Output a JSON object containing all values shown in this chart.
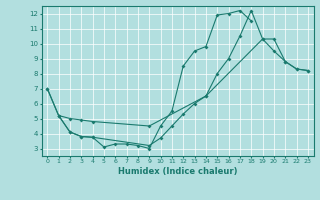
{
  "xlabel": "Humidex (Indice chaleur)",
  "xlim": [
    -0.5,
    23.5
  ],
  "ylim": [
    2.5,
    12.5
  ],
  "xticks": [
    0,
    1,
    2,
    3,
    4,
    5,
    6,
    7,
    8,
    9,
    10,
    11,
    12,
    13,
    14,
    15,
    16,
    17,
    18,
    19,
    20,
    21,
    22,
    23
  ],
  "yticks": [
    3,
    4,
    5,
    6,
    7,
    8,
    9,
    10,
    11,
    12
  ],
  "bg_color": "#b2dfdf",
  "line_color": "#1a7a6e",
  "line1_x": [
    0,
    1,
    2,
    3,
    4,
    5,
    6,
    7,
    8,
    9,
    10,
    11,
    12,
    13,
    14,
    15,
    16,
    17,
    18
  ],
  "line1_y": [
    7.0,
    5.2,
    4.1,
    3.8,
    3.75,
    3.1,
    3.3,
    3.3,
    3.2,
    3.0,
    4.5,
    5.5,
    8.5,
    9.5,
    9.8,
    11.9,
    12.0,
    12.2,
    11.5
  ],
  "line2_x": [
    0,
    1,
    2,
    3,
    4,
    9,
    10,
    11,
    12,
    13,
    14,
    15,
    16,
    17,
    18,
    19,
    20,
    21,
    22,
    23
  ],
  "line2_y": [
    7.0,
    5.2,
    4.1,
    3.8,
    3.75,
    3.2,
    3.7,
    4.5,
    5.3,
    6.0,
    6.5,
    8.0,
    9.0,
    10.5,
    12.2,
    10.3,
    9.5,
    8.8,
    8.3,
    8.2
  ],
  "line3_x": [
    1,
    2,
    3,
    4,
    9,
    14,
    19,
    20,
    21,
    22,
    23
  ],
  "line3_y": [
    5.2,
    5.0,
    4.9,
    4.8,
    4.5,
    6.5,
    10.3,
    10.3,
    8.8,
    8.3,
    8.2
  ]
}
